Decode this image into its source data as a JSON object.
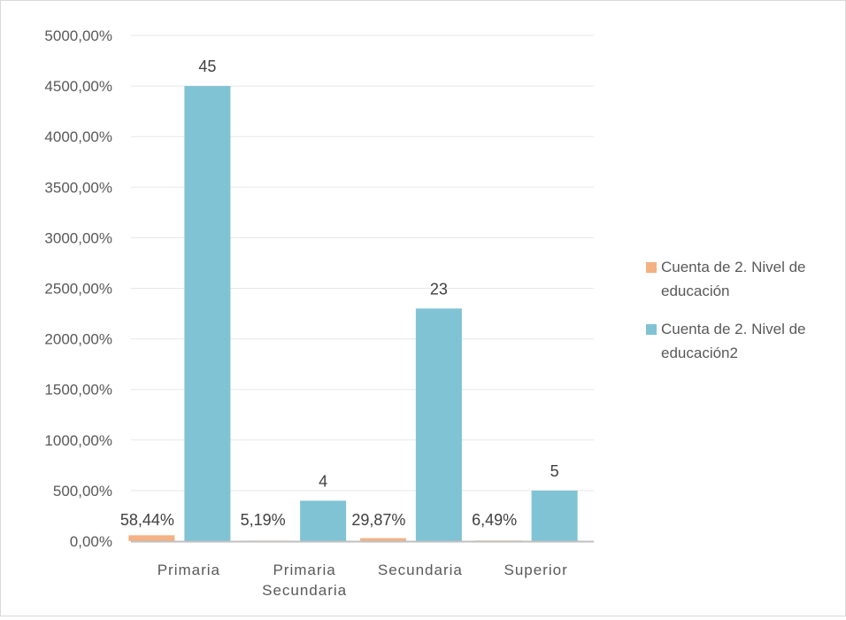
{
  "chart_data": {
    "type": "bar",
    "title": "",
    "xlabel": "",
    "ylabel": "",
    "categories": [
      [
        "Primaria"
      ],
      [
        "Primaria",
        "Secundaria"
      ],
      [
        "Secundaria"
      ],
      [
        "Superior"
      ]
    ],
    "ylim": [
      0,
      5000
    ],
    "y_ticks": [
      0,
      500,
      1000,
      1500,
      2000,
      2500,
      3000,
      3500,
      4000,
      4500,
      5000
    ],
    "y_tick_labels": [
      "0,00%",
      "500,00%",
      "1000,00%",
      "1500,00%",
      "2000,00%",
      "2500,00%",
      "3000,00%",
      "3500,00%",
      "4000,00%",
      "4500,00%",
      "5000,00%"
    ],
    "grid": true,
    "legend_position": "right",
    "series": [
      {
        "name": [
          "Cuenta de 2. Nivel de",
          "educación"
        ],
        "color": "#f4b183",
        "values": [
          58.44,
          5.19,
          29.87,
          6.49
        ],
        "labels": [
          "58,44%",
          "5,19%",
          "29,87%",
          "6,49%"
        ]
      },
      {
        "name": [
          "Cuenta de 2. Nivel de",
          "educación2"
        ],
        "color": "#7fc3d4",
        "values": [
          4500,
          400,
          2300,
          500
        ],
        "labels": [
          "45",
          "4",
          "23",
          "5"
        ]
      }
    ]
  }
}
